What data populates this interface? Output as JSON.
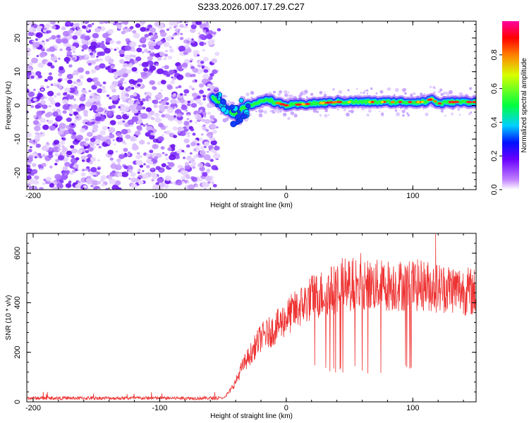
{
  "title": "S233.2026.007.17.29.C27",
  "chart_data": [
    {
      "type": "heatmap",
      "name": "spectrogram",
      "xlabel": "Height of straight line (km)",
      "ylabel": "Frequency (Hz)",
      "xlim": [
        -205,
        150
      ],
      "ylim": [
        -25,
        25
      ],
      "xticks": [
        -200,
        -100,
        0,
        100
      ],
      "yticks": [
        -20,
        -10,
        0,
        10,
        20
      ],
      "colorbar": {
        "label": "Normalized spectral amplitude",
        "range": [
          0,
          1
        ],
        "ticks": [
          "0.0",
          "0.2",
          "0.4",
          "0.6",
          "0.8"
        ]
      },
      "ridge": {
        "x": [
          -60,
          -50,
          -45,
          -40,
          -35,
          -30,
          -20,
          -15,
          -10,
          0,
          20,
          40,
          60,
          80,
          100,
          110,
          115,
          120,
          130,
          150
        ],
        "y": [
          3,
          0,
          -2,
          -3,
          -1,
          0,
          1,
          2,
          1,
          0,
          0.5,
          1,
          1,
          1,
          1,
          1,
          2,
          0.5,
          1,
          1
        ]
      },
      "noise_region_x": [
        -205,
        -55
      ]
    },
    {
      "type": "line",
      "name": "snr",
      "xlabel": "Height of straight line (km)",
      "ylabel": "SNR (10 * v/v)",
      "xlim": [
        -205,
        150
      ],
      "ylim": [
        0,
        680
      ],
      "xticks": [
        -200,
        -100,
        0,
        100
      ],
      "yticks": [
        0,
        200,
        400,
        600
      ],
      "color": "#ee3333",
      "envelope": {
        "x": [
          -205,
          -50,
          -45,
          -40,
          -35,
          -30,
          -25,
          -20,
          -10,
          0,
          10,
          20,
          30,
          40,
          50,
          60,
          70,
          80,
          90,
          100,
          110,
          120,
          130,
          140,
          150
        ],
        "y": [
          15,
          15,
          40,
          80,
          140,
          180,
          220,
          260,
          290,
          340,
          380,
          420,
          440,
          460,
          470,
          470,
          470,
          470,
          470,
          470,
          470,
          460,
          460,
          450,
          440
        ]
      }
    }
  ]
}
